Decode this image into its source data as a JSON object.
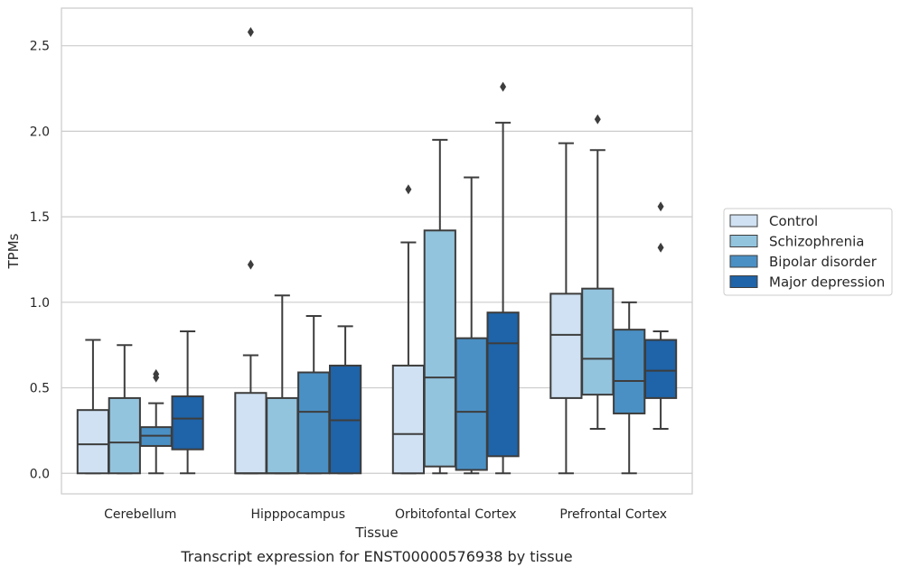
{
  "caption": "Transcript expression for ENST00000576938 by tissue",
  "chart_data": {
    "type": "box",
    "title": "",
    "xlabel": "Tissue",
    "ylabel": "TPMs",
    "ylim": [
      -0.12,
      2.72
    ],
    "yticks": [
      "0.0",
      "0.5",
      "1.0",
      "1.5",
      "2.0",
      "2.5"
    ],
    "grid": "horizontal",
    "legend_position": "right",
    "categories": [
      "Cerebellum",
      "Hipppocampus",
      "Orbitofontal Cortex",
      "Prefrontal Cortex"
    ],
    "series": [
      {
        "name": "Control",
        "color": "#cfe1f2",
        "boxes": [
          {
            "whislo": 0.0,
            "q1": 0.0,
            "med": 0.17,
            "q3": 0.37,
            "whishi": 0.78,
            "fliers": []
          },
          {
            "whislo": 0.0,
            "q1": 0.0,
            "med": 0.0,
            "q3": 0.47,
            "whishi": 0.69,
            "fliers": [
              1.22,
              2.58
            ]
          },
          {
            "whislo": 0.0,
            "q1": 0.0,
            "med": 0.23,
            "q3": 0.63,
            "whishi": 1.35,
            "fliers": [
              1.66
            ]
          },
          {
            "whislo": 0.0,
            "q1": 0.44,
            "med": 0.81,
            "q3": 1.05,
            "whishi": 1.93,
            "fliers": []
          }
        ]
      },
      {
        "name": "Schizophrenia",
        "color": "#93c4de",
        "boxes": [
          {
            "whislo": 0.0,
            "q1": 0.0,
            "med": 0.18,
            "q3": 0.44,
            "whishi": 0.75,
            "fliers": []
          },
          {
            "whislo": 0.0,
            "q1": 0.0,
            "med": 0.0,
            "q3": 0.44,
            "whishi": 1.04,
            "fliers": []
          },
          {
            "whislo": 0.0,
            "q1": 0.04,
            "med": 0.56,
            "q3": 1.42,
            "whishi": 1.95,
            "fliers": []
          },
          {
            "whislo": 0.26,
            "q1": 0.46,
            "med": 0.67,
            "q3": 1.08,
            "whishi": 1.89,
            "fliers": [
              2.07
            ]
          }
        ]
      },
      {
        "name": "Bipolar disorder",
        "color": "#4a90c4",
        "boxes": [
          {
            "whislo": 0.0,
            "q1": 0.16,
            "med": 0.22,
            "q3": 0.27,
            "whishi": 0.41,
            "fliers": [
              0.56,
              0.58
            ]
          },
          {
            "whislo": 0.0,
            "q1": 0.0,
            "med": 0.36,
            "q3": 0.59,
            "whishi": 0.92,
            "fliers": []
          },
          {
            "whislo": 0.0,
            "q1": 0.02,
            "med": 0.36,
            "q3": 0.79,
            "whishi": 1.73,
            "fliers": []
          },
          {
            "whislo": 0.0,
            "q1": 0.35,
            "med": 0.54,
            "q3": 0.84,
            "whishi": 1.0,
            "fliers": []
          }
        ]
      },
      {
        "name": "Major depression",
        "color": "#1f63a8",
        "boxes": [
          {
            "whislo": 0.0,
            "q1": 0.14,
            "med": 0.32,
            "q3": 0.45,
            "whishi": 0.83,
            "fliers": []
          },
          {
            "whislo": 0.0,
            "q1": 0.0,
            "med": 0.31,
            "q3": 0.63,
            "whishi": 0.86,
            "fliers": []
          },
          {
            "whislo": 0.0,
            "q1": 0.1,
            "med": 0.76,
            "q3": 0.94,
            "whishi": 2.05,
            "fliers": [
              2.26
            ]
          },
          {
            "whislo": 0.26,
            "q1": 0.44,
            "med": 0.6,
            "q3": 0.78,
            "whishi": 0.83,
            "fliers": [
              1.32,
              1.56
            ]
          }
        ]
      }
    ]
  }
}
